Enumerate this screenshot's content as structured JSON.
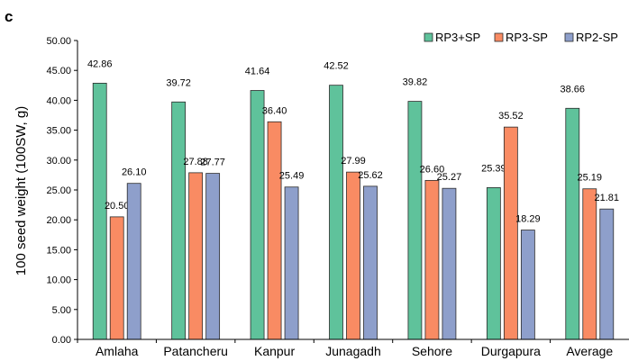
{
  "panel_label": "c",
  "chart_data": {
    "type": "bar",
    "title": "",
    "xlabel": "",
    "ylabel": "100 seed weight (100SW, g)",
    "ylim": [
      0,
      50
    ],
    "ytick_step": 5,
    "ytick_labels": [
      "0.00",
      "5.00",
      "10.00",
      "15.00",
      "20.00",
      "25.00",
      "30.00",
      "35.00",
      "40.00",
      "45.00",
      "50.00"
    ],
    "grid": false,
    "legend_position": "top-right",
    "categories": [
      "Amlaha",
      "Patancheru",
      "Kanpur",
      "Junagadh",
      "Sehore",
      "Durgapura",
      "Average"
    ],
    "series": [
      {
        "name": "RP3+SP",
        "color": "#5fc29b",
        "values": [
          42.86,
          39.72,
          41.64,
          42.52,
          39.82,
          25.39,
          38.66
        ],
        "labels": [
          "42.86",
          "39.72",
          "41.64",
          "42.52",
          "39.82",
          "25.39",
          "38.66"
        ]
      },
      {
        "name": "RP3-SP",
        "color": "#f98b63",
        "values": [
          20.5,
          27.88,
          36.4,
          27.99,
          26.6,
          35.52,
          25.19
        ],
        "labels": [
          "20.50",
          "27.88",
          "36.40",
          "27.99",
          "26.60",
          "35.52",
          "25.19"
        ]
      },
      {
        "name": "RP2-SP",
        "color": "#8e9fcb",
        "values": [
          26.1,
          27.77,
          25.49,
          25.62,
          25.27,
          18.29,
          21.81
        ],
        "labels": [
          "26.10",
          "27.77",
          "25.49",
          "25.62",
          "25.27",
          "18.29",
          "21.81"
        ]
      }
    ]
  }
}
